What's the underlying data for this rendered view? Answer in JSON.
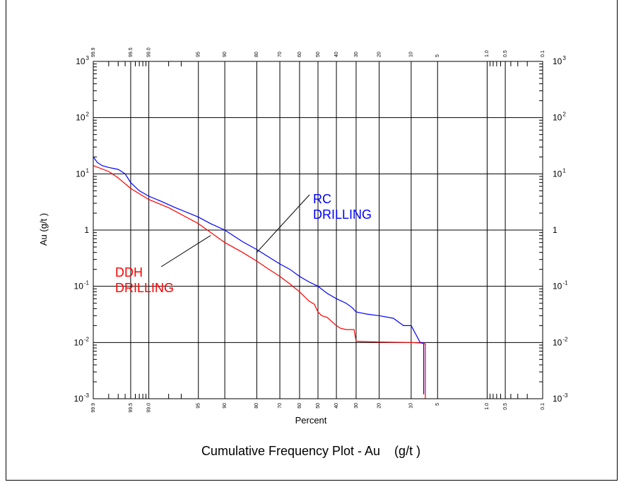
{
  "chart_data": {
    "type": "line",
    "title": "Cumulative Frequency Plot - Au    (g/t )",
    "xlabel": "Percent",
    "ylabel": "Au    (g/t )",
    "x_scale": "probability",
    "y_scale": "log",
    "ylim": [
      0.001,
      1000
    ],
    "x_ticks": [
      "99.9",
      "99.5",
      "99.0",
      "95",
      "90",
      "80",
      "70",
      "60",
      "50",
      "40",
      "30",
      "20",
      "10",
      "5",
      "1.0",
      "0.5",
      "0.1"
    ],
    "y_ticks": [
      {
        "base": "10",
        "exp": "3"
      },
      {
        "base": "10",
        "exp": "2"
      },
      {
        "base": "10",
        "exp": "1"
      },
      {
        "base": "1",
        "exp": ""
      },
      {
        "base": "10",
        "exp": "-1"
      },
      {
        "base": "10",
        "exp": "-2"
      },
      {
        "base": "10",
        "exp": "-3"
      }
    ],
    "grid": true,
    "series": [
      {
        "name": "RC DRILLING",
        "color": "#0000ff",
        "x": [
          99.9,
          99.88,
          99.85,
          99.8,
          99.7,
          99.6,
          99.5,
          99.3,
          99.0,
          98.5,
          97.5,
          95,
          93,
          90,
          85,
          80,
          75,
          70,
          65,
          60,
          55,
          50,
          45,
          40,
          35,
          32,
          30,
          25,
          20,
          15,
          12,
          10,
          8,
          7.5,
          7.3,
          7.3
        ],
        "y": [
          20,
          16,
          14,
          13,
          12,
          10,
          7,
          5,
          4,
          3.3,
          2.5,
          1.7,
          1.3,
          1.0,
          0.62,
          0.45,
          0.33,
          0.25,
          0.2,
          0.15,
          0.12,
          0.1,
          0.075,
          0.06,
          0.05,
          0.042,
          0.035,
          0.032,
          0.03,
          0.027,
          0.02,
          0.02,
          0.01,
          0.01,
          0.0095,
          0.0012
        ]
      },
      {
        "name": "DDH DRILLING",
        "color": "#ff0000",
        "x": [
          99.9,
          99.8,
          99.7,
          99.5,
          99.0,
          98.0,
          95,
          90,
          85,
          80,
          75,
          70,
          65,
          60,
          55,
          52,
          50,
          48,
          45,
          40,
          38,
          35,
          31,
          30,
          20,
          10,
          8,
          7,
          7
        ],
        "y": [
          14,
          11,
          8.5,
          5.5,
          3.5,
          2.5,
          1.3,
          0.6,
          0.4,
          0.28,
          0.2,
          0.15,
          0.11,
          0.08,
          0.055,
          0.048,
          0.035,
          0.03,
          0.028,
          0.02,
          0.018,
          0.017,
          0.017,
          0.0105,
          0.0102,
          0.01,
          0.0098,
          0.0095,
          0.001
        ]
      }
    ],
    "annotations": [
      {
        "lines": [
          "RC",
          "DRILLING"
        ],
        "color": "#0000ff",
        "points_to": {
          "x": 80,
          "y": 0.4
        }
      },
      {
        "lines": [
          "DDH",
          "DRILLING"
        ],
        "color": "#ff0000",
        "points_to": {
          "x": 93,
          "y": 0.8
        }
      }
    ]
  }
}
